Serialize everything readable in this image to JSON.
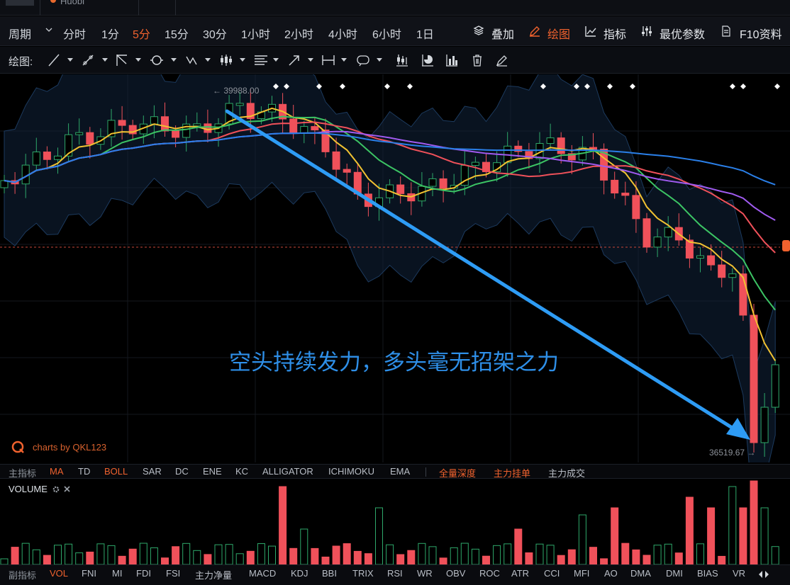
{
  "tabstrip": {
    "exchange_tab": "Huobi"
  },
  "period_bar": {
    "label": "周期",
    "items": [
      "分时",
      "1分",
      "5分",
      "15分",
      "30分",
      "1小时",
      "2小时",
      "4小时",
      "6小时",
      "1日"
    ],
    "active": "5分",
    "right": {
      "overlay": "叠加",
      "draw": "绘图",
      "indicators": "指标",
      "best_params": "最优参数",
      "f10": "F10资料"
    }
  },
  "draw_bar": {
    "label": "绘图:"
  },
  "chart": {
    "high_label": "← 39988.00",
    "low_label": "36519.67 →",
    "annotation": "空头持续发力，多头毫无招架之力",
    "watermark": "charts by QKL123",
    "colors": {
      "up": "#2ea86a",
      "down": "#f0515a",
      "ma_yellow": "#f1c232",
      "ma_green": "#3cc464",
      "ma_red": "#f0515a",
      "ma_purple": "#a05bf0",
      "ma_blue": "#2a7fe8",
      "arrow": "#2e9cf5",
      "accent": "#f0622e"
    }
  },
  "main_indicators": {
    "label": "主指标",
    "items": [
      "MA",
      "TD",
      "BOLL",
      "SAR",
      "DC",
      "ENE",
      "KC",
      "ALLIGATOR",
      "ICHIMOKU",
      "EMA"
    ],
    "highlighted": [
      "MA",
      "BOLL"
    ],
    "extras": [
      "全量深度",
      "主力挂单",
      "主力成交"
    ]
  },
  "volume_panel": {
    "label": "VOLUME"
  },
  "sub_indicators": {
    "label": "副指标",
    "items": [
      "VOL",
      "FNI",
      "MI",
      "FDI",
      "FSI",
      "主力净量",
      "MACD",
      "KDJ",
      "BBI",
      "TRIX",
      "RSI",
      "WR",
      "OBV",
      "ROC",
      "ATR",
      "CCI",
      "MFI",
      "AO",
      "DMA",
      "DMI",
      "BIAS",
      "VR"
    ],
    "active": "VOL"
  }
}
